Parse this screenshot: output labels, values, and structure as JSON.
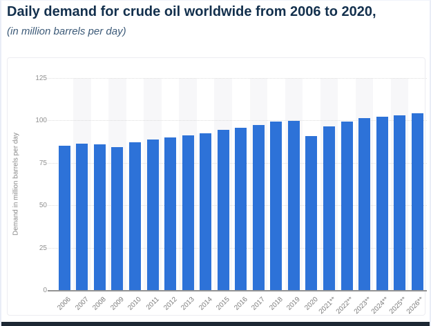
{
  "header": {
    "title": "Daily demand for crude oil worldwide from 2006 to 2020,",
    "subtitle": "(in million barrels per day)"
  },
  "chart_data": {
    "type": "bar",
    "title": "Daily demand for crude oil worldwide from 2006 to 2020,",
    "subtitle": "(in million barrels per day)",
    "categories": [
      "2006",
      "2007",
      "2008",
      "2009",
      "2010",
      "2011",
      "2012",
      "2013",
      "2014",
      "2015",
      "2016",
      "2017",
      "2018",
      "2019",
      "2020",
      "2021**",
      "2022**",
      "2023**",
      "2024**",
      "2025**",
      "2026**"
    ],
    "values": [
      85.3,
      86.5,
      86.1,
      84.2,
      87.3,
      88.9,
      89.8,
      91.4,
      92.4,
      94.4,
      95.7,
      97.5,
      99.3,
      99.7,
      91.0,
      96.5,
      99.4,
      101.2,
      102.2,
      103.2,
      104.1
    ],
    "xlabel": "",
    "ylabel": "Demand in million barrels per day",
    "ylim": [
      0,
      125
    ],
    "yticks": [
      0,
      25,
      50,
      75,
      100,
      125
    ],
    "grid": "horizontal-dotted",
    "legend": "none",
    "bar_color": "#2d72d8",
    "band_color": "#f7f7f9",
    "axis_line_color": "#939393"
  },
  "footer": {
    "bar_color": "#1c2733"
  }
}
